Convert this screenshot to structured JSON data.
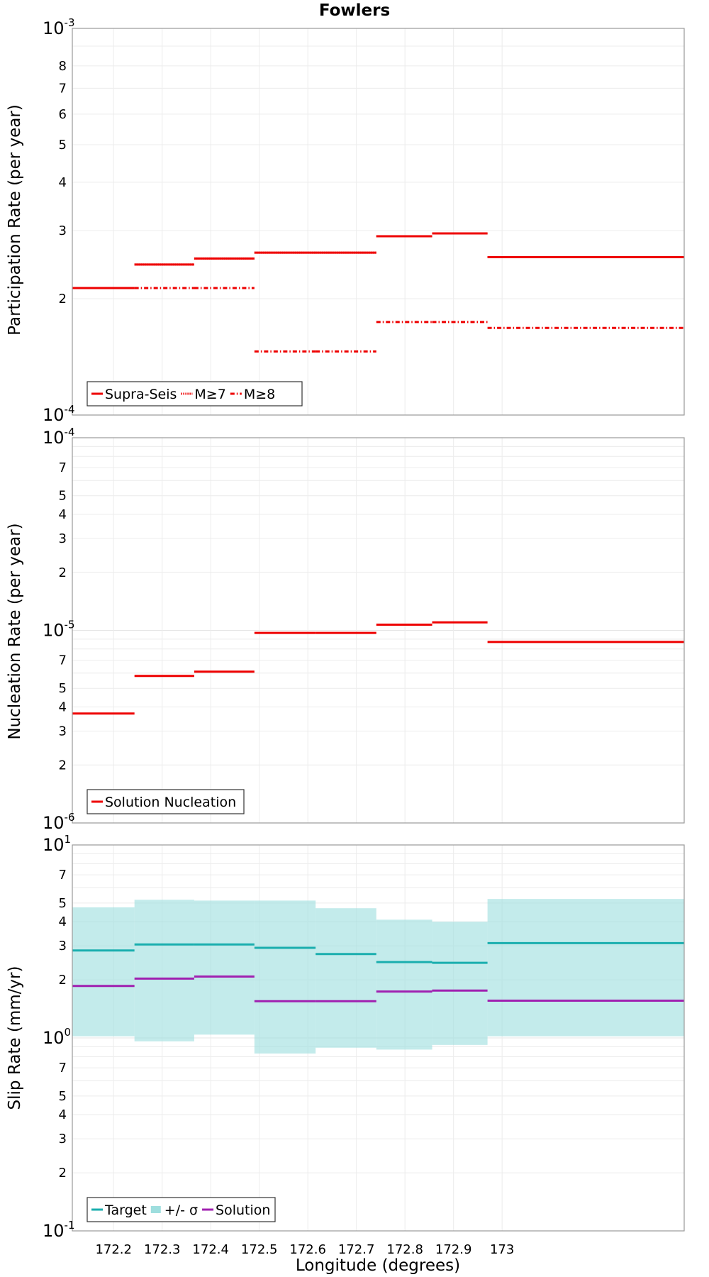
{
  "title": "Fowlers",
  "xlabel": "Longitude (degrees)",
  "chart_data": [
    {
      "type": "line",
      "subtype": "step-segments",
      "title": "Fowlers",
      "ylabel": "Participation Rate (per year)",
      "yscale": "log",
      "ylim": [
        0.0001,
        0.001
      ],
      "xlim": [
        172.115,
        173.375
      ],
      "x_ticks": [
        172.2,
        172.3,
        172.4,
        172.5,
        172.6,
        172.7,
        172.8,
        172.9,
        173
      ],
      "y_minor_ticks": [
        2,
        3,
        4,
        5,
        6,
        7,
        8
      ],
      "grid": true,
      "legend": "bottom-left",
      "segments_x": [
        [
          172.115,
          172.243
        ],
        [
          172.243,
          172.366
        ],
        [
          172.366,
          172.49
        ],
        [
          172.49,
          172.616
        ],
        [
          172.616,
          172.741
        ],
        [
          172.741,
          172.856
        ],
        [
          172.856,
          172.97
        ],
        [
          172.97,
          173.375
        ]
      ],
      "series": [
        {
          "name": "Supra-Seis",
          "style": "solid",
          "color": "#ee0000",
          "values": [
            0.000213,
            0.000245,
            0.000254,
            0.000263,
            0.000263,
            0.00029,
            0.000295,
            0.000256
          ]
        },
        {
          "name": "M≥7",
          "style": "dotted",
          "color": "#ee0000",
          "values": [
            0.000213,
            0.000245,
            0.000254,
            0.000263,
            0.000263,
            0.00029,
            0.000295,
            0.000256
          ]
        },
        {
          "name": "M≥8",
          "style": "dash-dot",
          "color": "#ee0000",
          "values": [
            0.000213,
            0.000213,
            0.000213,
            0.000146,
            0.000146,
            0.000174,
            0.000174,
            0.000168
          ]
        }
      ]
    },
    {
      "type": "line",
      "subtype": "step-segments",
      "ylabel": "Nucleation Rate (per year)",
      "yscale": "log",
      "ylim": [
        1e-06,
        0.0001
      ],
      "xlim": [
        172.115,
        173.375
      ],
      "x_ticks": [
        172.2,
        172.3,
        172.4,
        172.5,
        172.6,
        172.7,
        172.8,
        172.9,
        173
      ],
      "y_minor_ticks": [
        2,
        3,
        4,
        5,
        7
      ],
      "grid": true,
      "legend": "bottom-left",
      "segments_x": [
        [
          172.115,
          172.243
        ],
        [
          172.243,
          172.366
        ],
        [
          172.366,
          172.49
        ],
        [
          172.49,
          172.616
        ],
        [
          172.616,
          172.741
        ],
        [
          172.741,
          172.856
        ],
        [
          172.856,
          172.97
        ],
        [
          172.97,
          173.375
        ]
      ],
      "series": [
        {
          "name": "Solution Nucleation",
          "style": "solid",
          "color": "#ee0000",
          "values": [
            3.7e-06,
            5.8e-06,
            6.1e-06,
            9.7e-06,
            9.7e-06,
            1.07e-05,
            1.1e-05,
            8.7e-06
          ]
        }
      ]
    },
    {
      "type": "line",
      "subtype": "step-segments-with-band",
      "ylabel": "Slip Rate (mm/yr)",
      "yscale": "log",
      "ylim": [
        0.1,
        10
      ],
      "xlim": [
        172.115,
        173.375
      ],
      "x_ticks": [
        172.2,
        172.3,
        172.4,
        172.5,
        172.6,
        172.7,
        172.8,
        172.9,
        173
      ],
      "y_minor_ticks": [
        2,
        3,
        4,
        5,
        7
      ],
      "grid": true,
      "legend": "bottom-left",
      "segments_x": [
        [
          172.115,
          172.243
        ],
        [
          172.243,
          172.366
        ],
        [
          172.366,
          172.49
        ],
        [
          172.49,
          172.616
        ],
        [
          172.616,
          172.741
        ],
        [
          172.741,
          172.856
        ],
        [
          172.856,
          172.97
        ],
        [
          172.97,
          173.375
        ]
      ],
      "band": {
        "name": "+/- σ",
        "color": "#9edede",
        "lower": [
          1.02,
          0.96,
          1.04,
          0.83,
          0.89,
          0.87,
          0.92,
          1.02
        ],
        "upper": [
          4.75,
          5.2,
          5.15,
          5.15,
          4.7,
          4.1,
          4.0,
          5.25
        ]
      },
      "series": [
        {
          "name": "Target",
          "style": "solid",
          "color": "#1aaeae",
          "values": [
            2.84,
            3.05,
            3.05,
            2.93,
            2.72,
            2.47,
            2.45,
            3.1
          ]
        },
        {
          "name": "Solution",
          "style": "solid",
          "color": "#a020b0",
          "values": [
            1.86,
            2.03,
            2.08,
            1.55,
            1.55,
            1.74,
            1.76,
            1.56
          ]
        }
      ]
    }
  ]
}
